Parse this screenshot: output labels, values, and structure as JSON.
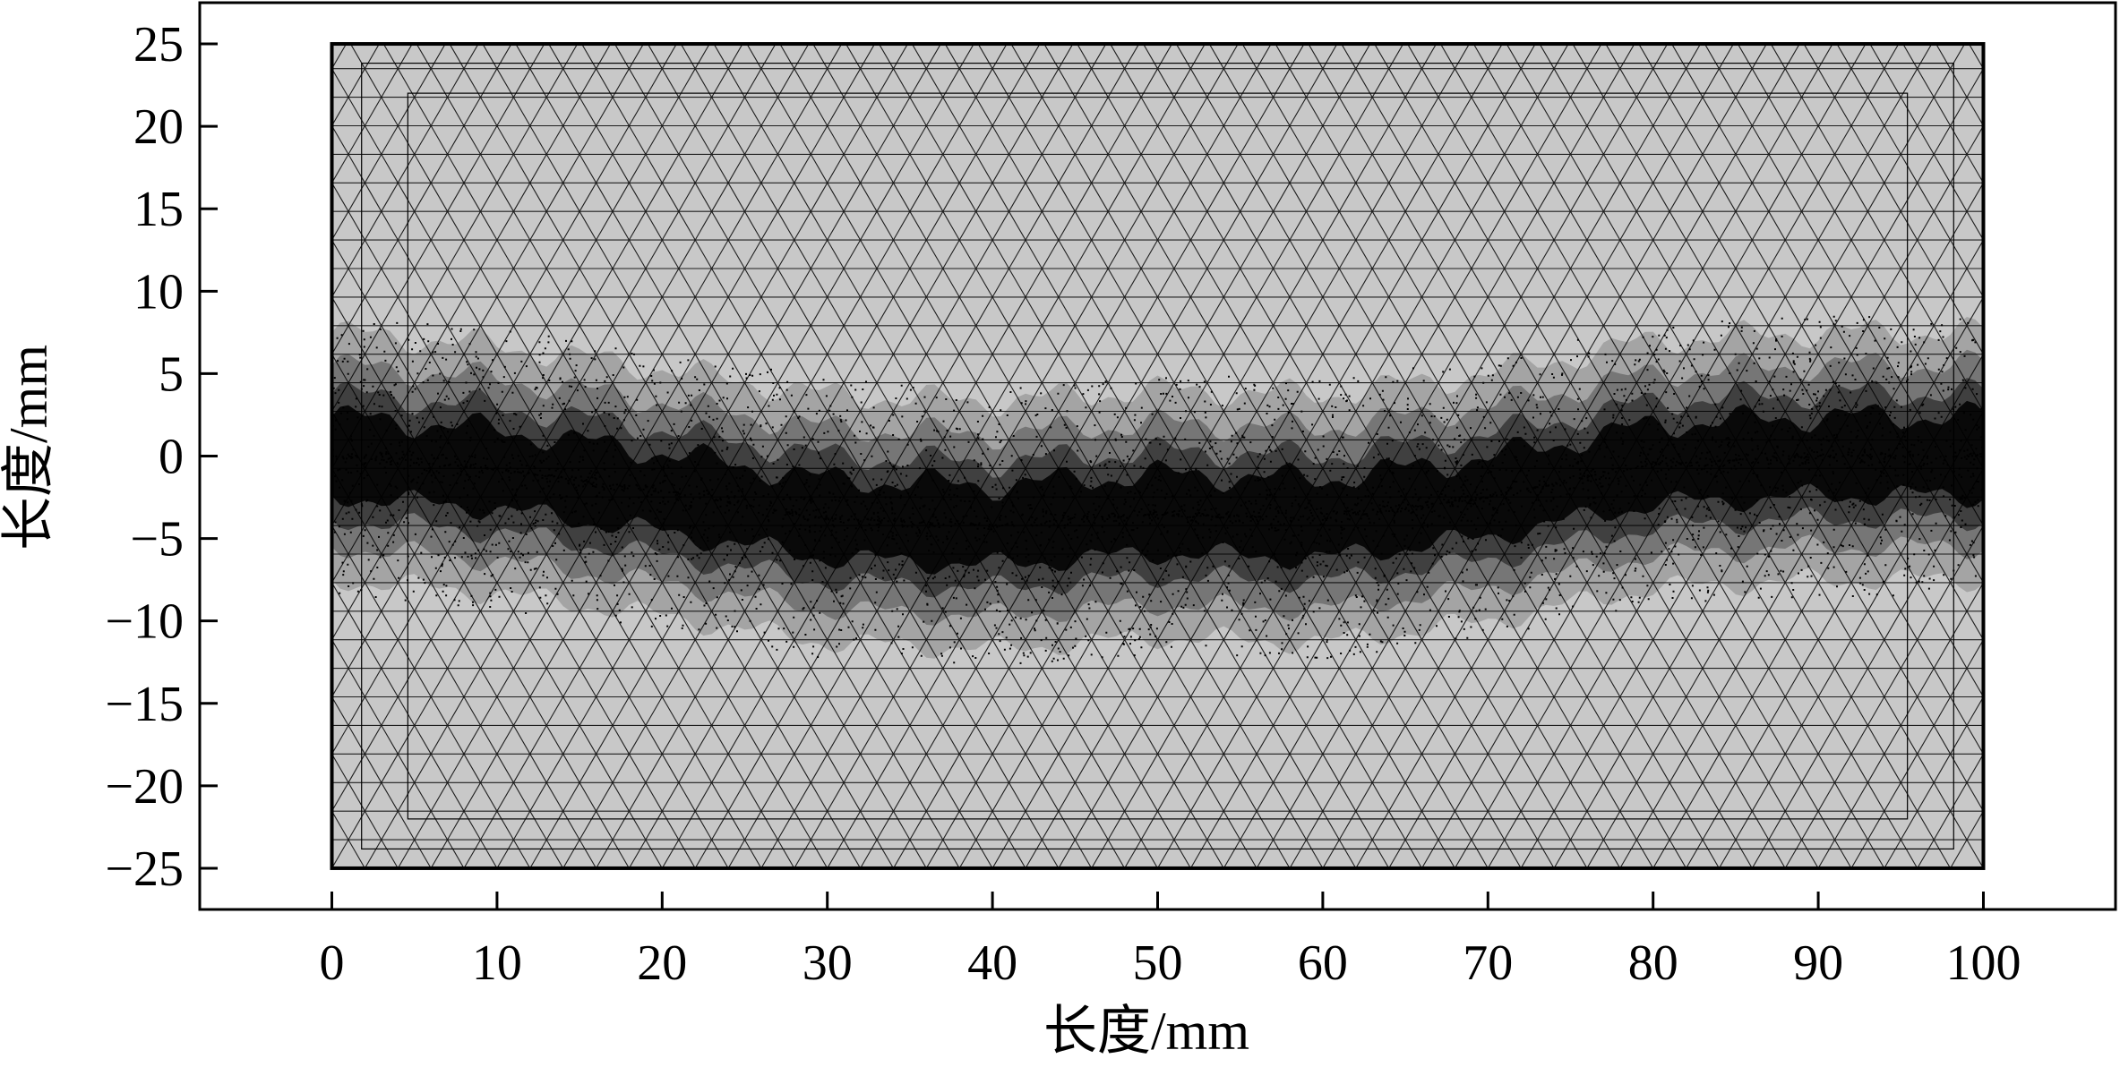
{
  "chart_data": {
    "type": "mesh",
    "xlabel": "长度/mm",
    "ylabel": "长度/mm",
    "xlim": [
      -8,
      108
    ],
    "ylim": [
      -27.5,
      27.5
    ],
    "xticks": [
      0,
      10,
      20,
      30,
      40,
      50,
      60,
      70,
      80,
      90,
      100
    ],
    "yticks": [
      25,
      20,
      15,
      10,
      5,
      0,
      -5,
      -10,
      -15,
      -20,
      -25
    ],
    "domain": {
      "x": [
        0,
        100
      ],
      "y": [
        -25,
        25
      ]
    },
    "refinement_path": {
      "x": [
        0,
        10,
        20,
        30,
        40,
        50,
        60,
        70,
        80,
        90,
        100
      ],
      "y": [
        0,
        -0.8,
        -2.2,
        -3.8,
        -4.2,
        -3.5,
        -3.8,
        -2.5,
        -0.5,
        0,
        0
      ]
    },
    "grid": false,
    "colors": {
      "mesh_fill": "#c8c8c8",
      "mesh_line": "#000000",
      "axis": "#000000"
    }
  }
}
